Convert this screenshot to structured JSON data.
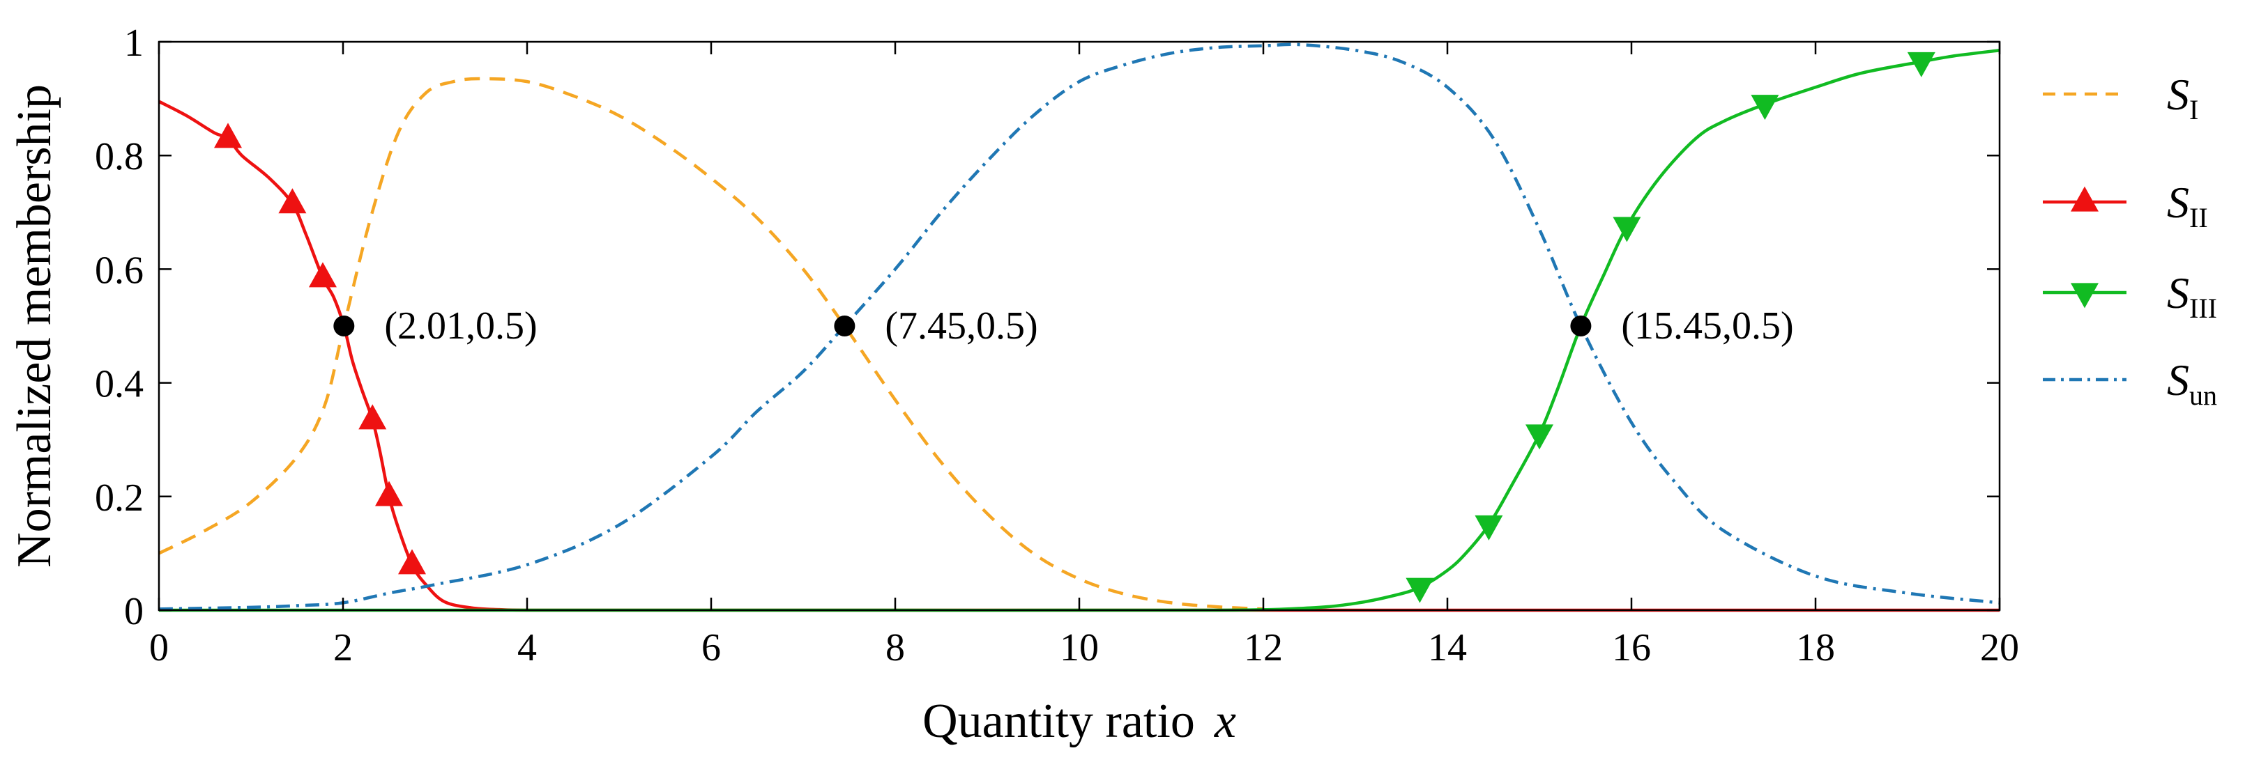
{
  "chart_data": {
    "type": "line",
    "xlabel": "Quantity ratio",
    "xlabel_var": "x",
    "ylabel": "Normalized membership",
    "xlim": [
      0,
      20
    ],
    "ylim": [
      0,
      1
    ],
    "x_ticks": [
      0,
      2,
      4,
      6,
      8,
      10,
      12,
      14,
      16,
      18,
      20
    ],
    "x_tick_labels": [
      "0",
      "2",
      "4",
      "6",
      "8",
      "10",
      "12",
      "14",
      "16",
      "18",
      "20"
    ],
    "y_ticks": [
      0,
      0.2,
      0.4,
      0.6,
      0.8,
      1
    ],
    "y_tick_labels": [
      "0",
      "0.2",
      "0.4",
      "0.6",
      "0.8",
      "1"
    ],
    "grid": false,
    "legend_position": "outside-right",
    "series": [
      {
        "key": "S_I",
        "name": "S",
        "subscript": "I",
        "color": "#f5a623",
        "dash": "dashed",
        "marker": "none",
        "x": [
          0,
          0.5,
          1,
          1.5,
          1.8,
          2.01,
          2.3,
          2.6,
          2.9,
          3.2,
          3.5,
          4,
          4.5,
          5,
          5.5,
          6,
          6.5,
          7,
          7.45,
          8,
          8.5,
          9,
          9.5,
          10,
          10.5,
          11,
          11.5,
          12
        ],
        "y": [
          0.1,
          0.14,
          0.19,
          0.27,
          0.36,
          0.5,
          0.69,
          0.84,
          0.91,
          0.93,
          0.935,
          0.93,
          0.905,
          0.87,
          0.82,
          0.76,
          0.69,
          0.6,
          0.5,
          0.37,
          0.26,
          0.17,
          0.1,
          0.055,
          0.028,
          0.013,
          0.006,
          0.002
        ]
      },
      {
        "key": "S_II",
        "name": "S",
        "subscript": "II",
        "color": "#ee1111",
        "dash": "solid",
        "marker": "triangle-up",
        "x": [
          0,
          0.3,
          0.6,
          0.75,
          0.9,
          1.2,
          1.45,
          1.6,
          1.78,
          1.9,
          2.01,
          2.1,
          2.2,
          2.32,
          2.4,
          2.5,
          2.6,
          2.75,
          2.9,
          3.1,
          3.4,
          3.7,
          4,
          5,
          6,
          8,
          10,
          12,
          14,
          16,
          18,
          20
        ],
        "y": [
          0.895,
          0.87,
          0.84,
          0.83,
          0.8,
          0.76,
          0.715,
          0.66,
          0.585,
          0.55,
          0.5,
          0.44,
          0.39,
          0.335,
          0.28,
          0.2,
          0.145,
          0.08,
          0.045,
          0.015,
          0.004,
          0.001,
          0,
          0,
          0,
          0,
          0,
          0,
          0,
          0,
          0,
          0
        ],
        "marker_x": [
          0.75,
          1.45,
          1.78,
          2.32,
          2.5,
          2.75
        ],
        "marker_y": [
          0.83,
          0.715,
          0.585,
          0.335,
          0.2,
          0.08
        ]
      },
      {
        "key": "S_III",
        "name": "S",
        "subscript": "III",
        "color": "#11bb22",
        "dash": "solid",
        "marker": "triangle-down",
        "x": [
          0,
          4,
          8,
          11.5,
          12.5,
          13,
          13.4,
          13.7,
          14,
          14.2,
          14.45,
          14.7,
          15,
          15.2,
          15.45,
          15.7,
          15.95,
          16.3,
          16.7,
          17,
          17.45,
          18,
          18.5,
          19.15,
          19.5,
          20
        ],
        "y": [
          0,
          0,
          0,
          0,
          0.004,
          0.012,
          0.025,
          0.04,
          0.07,
          0.1,
          0.15,
          0.22,
          0.31,
          0.39,
          0.5,
          0.59,
          0.675,
          0.76,
          0.83,
          0.86,
          0.89,
          0.92,
          0.945,
          0.965,
          0.975,
          0.985
        ],
        "marker_x": [
          13.7,
          14.45,
          15,
          15.95,
          17.45,
          19.15
        ],
        "marker_y": [
          0.04,
          0.15,
          0.31,
          0.675,
          0.89,
          0.965
        ]
      },
      {
        "key": "S_un",
        "name": "S",
        "subscript": "un",
        "color": "#1f77b4",
        "dash": "dash-dot",
        "marker": "none",
        "x": [
          0,
          1,
          1.5,
          2,
          2.5,
          3,
          4,
          5,
          6,
          6.5,
          7,
          7.45,
          8,
          8.5,
          9,
          9.5,
          10,
          10.5,
          11,
          11.5,
          12,
          12.4,
          13,
          13.5,
          14,
          14.5,
          15,
          15.45,
          16,
          16.5,
          17,
          18,
          19,
          20
        ],
        "y": [
          0.002,
          0.005,
          0.008,
          0.013,
          0.03,
          0.045,
          0.08,
          0.15,
          0.27,
          0.35,
          0.42,
          0.5,
          0.6,
          0.7,
          0.79,
          0.87,
          0.93,
          0.96,
          0.98,
          0.99,
          0.993,
          0.995,
          0.985,
          0.965,
          0.92,
          0.83,
          0.67,
          0.5,
          0.33,
          0.22,
          0.14,
          0.06,
          0.03,
          0.013
        ]
      }
    ],
    "points": [
      {
        "x": 2.01,
        "y": 0.5,
        "label": "(2.01,0.5)"
      },
      {
        "x": 7.45,
        "y": 0.5,
        "label": "(7.45,0.5)"
      },
      {
        "x": 15.45,
        "y": 0.5,
        "label": "(15.45,0.5)"
      }
    ]
  }
}
